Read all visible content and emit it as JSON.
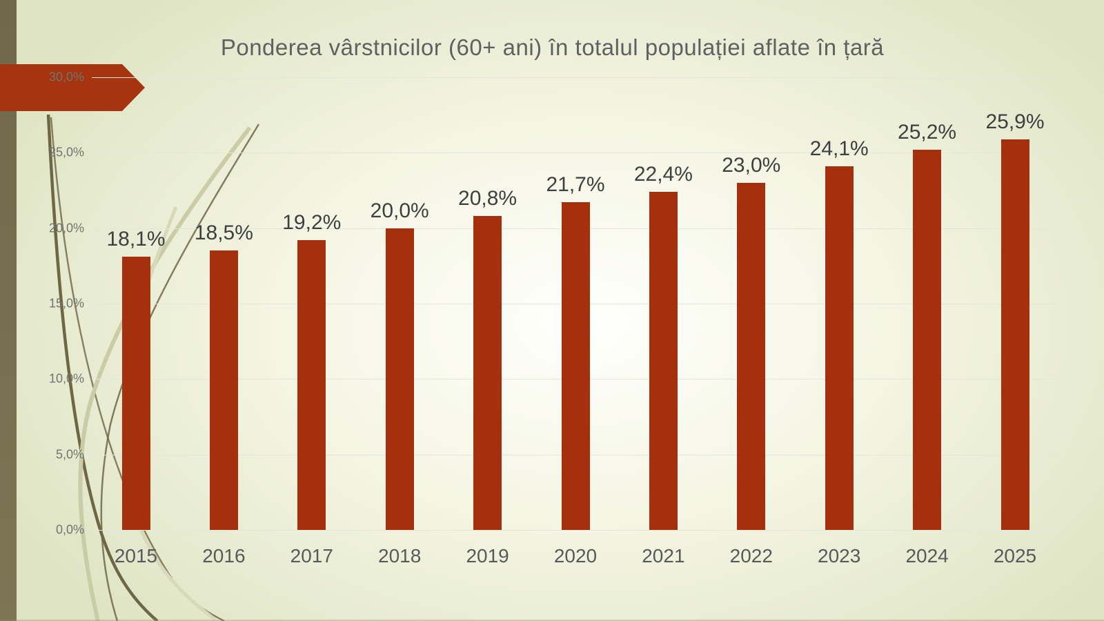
{
  "chart_data": {
    "type": "bar",
    "title": "Ponderea vârstnicilor (60+ ani) în totalul populației aflate în țară",
    "categories": [
      "2015",
      "2016",
      "2017",
      "2018",
      "2019",
      "2020",
      "2021",
      "2022",
      "2023",
      "2024",
      "2025"
    ],
    "values": [
      18.1,
      18.5,
      19.2,
      20.0,
      20.8,
      21.7,
      22.4,
      23.0,
      24.1,
      25.2,
      25.9
    ],
    "value_labels": [
      "18,1%",
      "18,5%",
      "19,2%",
      "20,0%",
      "20,8%",
      "21,7%",
      "22,4%",
      "23,0%",
      "24,1%",
      "25,2%",
      "25,9%"
    ],
    "xlabel": "",
    "ylabel": "",
    "ylim": [
      0,
      30
    ],
    "y_ticks": [
      {
        "value": 0,
        "label": "0,0%"
      },
      {
        "value": 5,
        "label": "5,0%"
      },
      {
        "value": 10,
        "label": "10,0%"
      },
      {
        "value": 15,
        "label": "15,0%"
      },
      {
        "value": 20,
        "label": "20,0%"
      },
      {
        "value": 25,
        "label": "25,0%"
      },
      {
        "value": 30,
        "label": "30,0%"
      }
    ],
    "grid": true,
    "legend": false,
    "bar_color": "#A5300E"
  },
  "colors": {
    "bar_red": "#A5300E",
    "arrow_red": "#A5340F",
    "stripe_olive_top": "#6F684A",
    "stripe_olive_bottom": "#7D7554",
    "curve_dark": "#6E6746",
    "curve_light": "#C9CCA7",
    "curve_light_2": "#D7D9BA",
    "gridline": "#E4E6DA",
    "title_text": "#606060",
    "data_label_text": "#3F3F3F",
    "axis_text": "#595959",
    "tick_text": "#74746E",
    "bg_center": "#FFFFFD",
    "bg_edge": "#DDE3C3"
  }
}
